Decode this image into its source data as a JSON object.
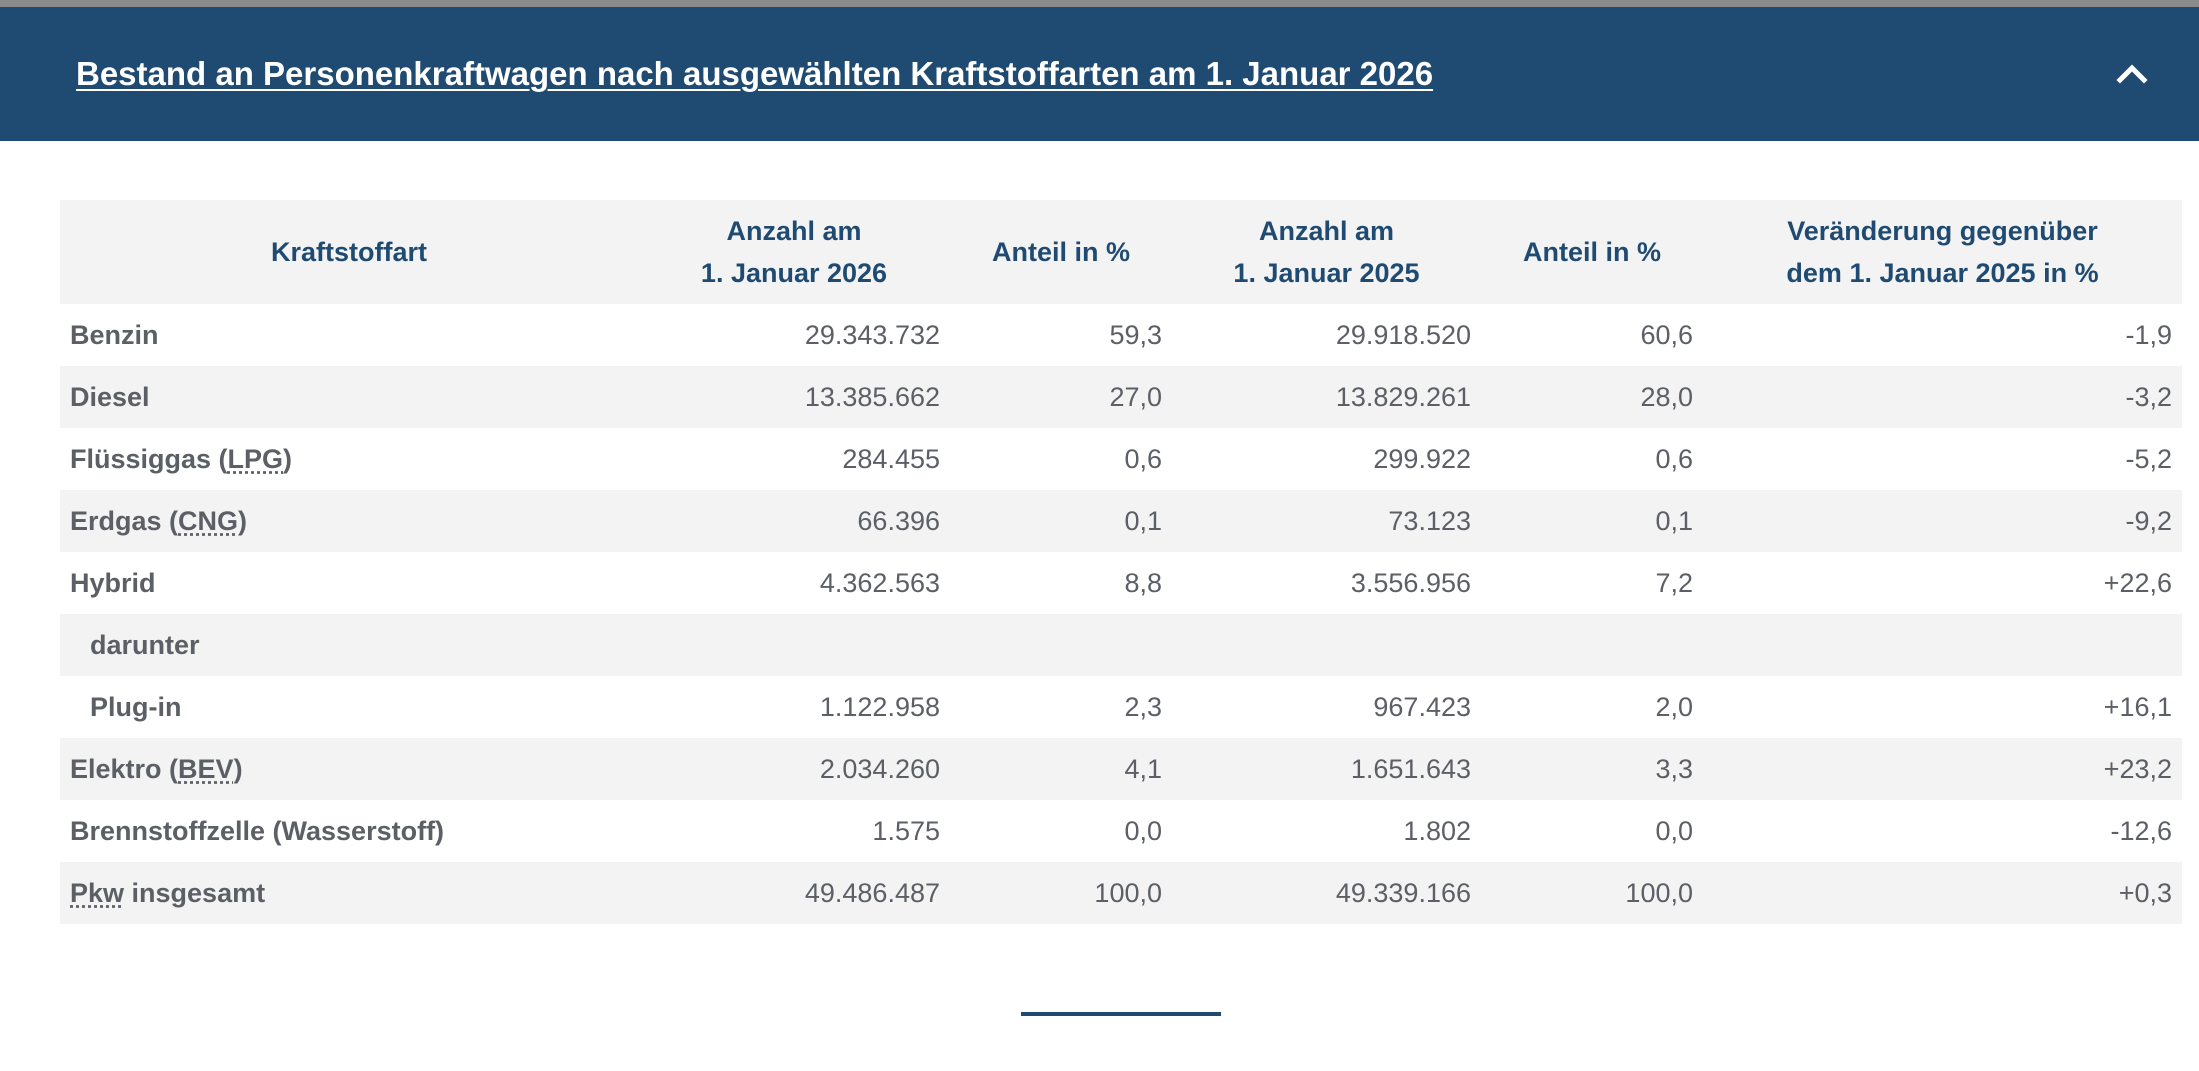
{
  "header": {
    "title": "Bestand an Personenkraftwagen nach ausgewählten Kraftstoffarten am 1. Januar 2026",
    "toggle_icon": "chevron-up-icon"
  },
  "table": {
    "columns": [
      {
        "line1": "Kraftstoffart",
        "line2": ""
      },
      {
        "line1": "Anzahl am",
        "line2": "1. Januar 2026"
      },
      {
        "line1": "Anteil in %",
        "line2": ""
      },
      {
        "line1": "Anzahl am",
        "line2": "1. Januar 2025"
      },
      {
        "line1": "Anteil in %",
        "line2": ""
      },
      {
        "line1": "Veränderung gegenüber",
        "line2": "dem 1. Januar 2025 in %"
      }
    ],
    "rows": [
      {
        "label": "Benzin",
        "abbr": "",
        "suffix": "",
        "indent": false,
        "values": [
          "29.343.732",
          "59,3",
          "29.918.520",
          "60,6",
          "-1,9"
        ]
      },
      {
        "label": "Diesel",
        "abbr": "",
        "suffix": "",
        "indent": false,
        "values": [
          "13.385.662",
          "27,0",
          "13.829.261",
          "28,0",
          "-3,2"
        ]
      },
      {
        "label": "Flüssiggas (",
        "abbr": "LPG",
        "suffix": ")",
        "indent": false,
        "values": [
          "284.455",
          "0,6",
          "299.922",
          "0,6",
          "-5,2"
        ]
      },
      {
        "label": "Erdgas (",
        "abbr": "CNG",
        "suffix": ")",
        "indent": false,
        "values": [
          "66.396",
          "0,1",
          "73.123",
          "0,1",
          "-9,2"
        ]
      },
      {
        "label": "Hybrid",
        "abbr": "",
        "suffix": "",
        "indent": false,
        "values": [
          "4.362.563",
          "8,8",
          "3.556.956",
          "7,2",
          "+22,6"
        ]
      },
      {
        "label": "darunter",
        "abbr": "",
        "suffix": "",
        "indent": true,
        "values": [
          "",
          "",
          "",
          "",
          ""
        ]
      },
      {
        "label": "Plug-in",
        "abbr": "",
        "suffix": "",
        "indent": true,
        "values": [
          "1.122.958",
          "2,3",
          "967.423",
          "2,0",
          "+16,1"
        ]
      },
      {
        "label": "Elektro (",
        "abbr": "BEV",
        "suffix": ")",
        "indent": false,
        "values": [
          "2.034.260",
          "4,1",
          "1.651.643",
          "3,3",
          "+23,2"
        ]
      },
      {
        "label": "Brennstoffzelle (Wasserstoff)",
        "abbr": "",
        "suffix": "",
        "indent": false,
        "values": [
          "1.575",
          "0,0",
          "1.802",
          "0,0",
          "-12,6"
        ]
      },
      {
        "label": "",
        "abbr": "Pkw",
        "suffix": " insgesamt",
        "indent": false,
        "values": [
          "49.486.487",
          "100,0",
          "49.339.166",
          "100,0",
          "+0,3"
        ]
      }
    ]
  },
  "colors": {
    "header_bg": "#1f4b72",
    "header_text": "#ffffff",
    "table_header_text": "#1f4b72",
    "stripe_bg": "#f3f3f3",
    "body_text": "#5c6066"
  }
}
